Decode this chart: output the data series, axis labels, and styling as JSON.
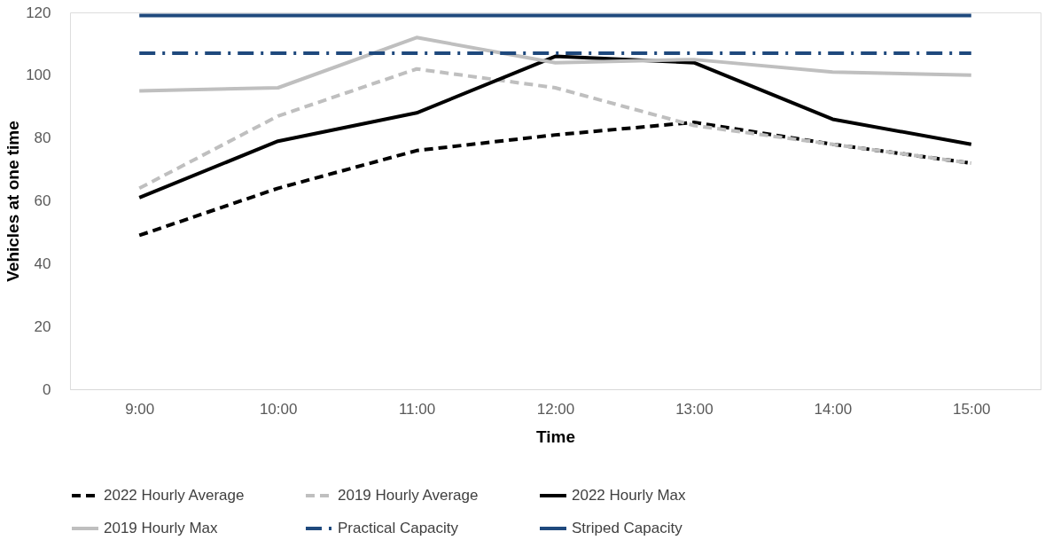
{
  "chart_data": {
    "type": "line",
    "xlabel": "Time",
    "ylabel": "Vehicles at one time",
    "categories": [
      "9:00",
      "10:00",
      "11:00",
      "12:00",
      "13:00",
      "14:00",
      "15:00"
    ],
    "series": [
      {
        "name": "2022 Hourly Average",
        "color": "#000000",
        "line_style": "dashed",
        "values": [
          49,
          64,
          76,
          81,
          85,
          78,
          72
        ]
      },
      {
        "name": "2019 Hourly Average",
        "color": "#bfbfbf",
        "line_style": "dashed",
        "values": [
          64,
          87,
          102,
          96,
          84,
          78,
          72
        ]
      },
      {
        "name": "2022 Hourly Max",
        "color": "#000000",
        "line_style": "solid",
        "values": [
          61,
          79,
          88,
          106,
          104,
          86,
          78
        ]
      },
      {
        "name": "2019 Hourly Max",
        "color": "#bfbfbf",
        "line_style": "solid",
        "values": [
          95,
          96,
          112,
          104,
          105,
          101,
          100
        ]
      },
      {
        "name": "Practical Capacity",
        "color": "#1f497d",
        "line_style": "dashdot",
        "values": [
          107,
          107,
          107,
          107,
          107,
          107,
          107
        ]
      },
      {
        "name": "Striped Capacity",
        "color": "#1f497d",
        "line_style": "solid",
        "values": [
          119,
          119,
          119,
          119,
          119,
          119,
          119
        ]
      }
    ],
    "ylim": [
      0,
      120
    ],
    "yticks": [
      0,
      20,
      40,
      60,
      80,
      100,
      120
    ],
    "grid": false,
    "legend": "bottom",
    "marker": "none"
  }
}
